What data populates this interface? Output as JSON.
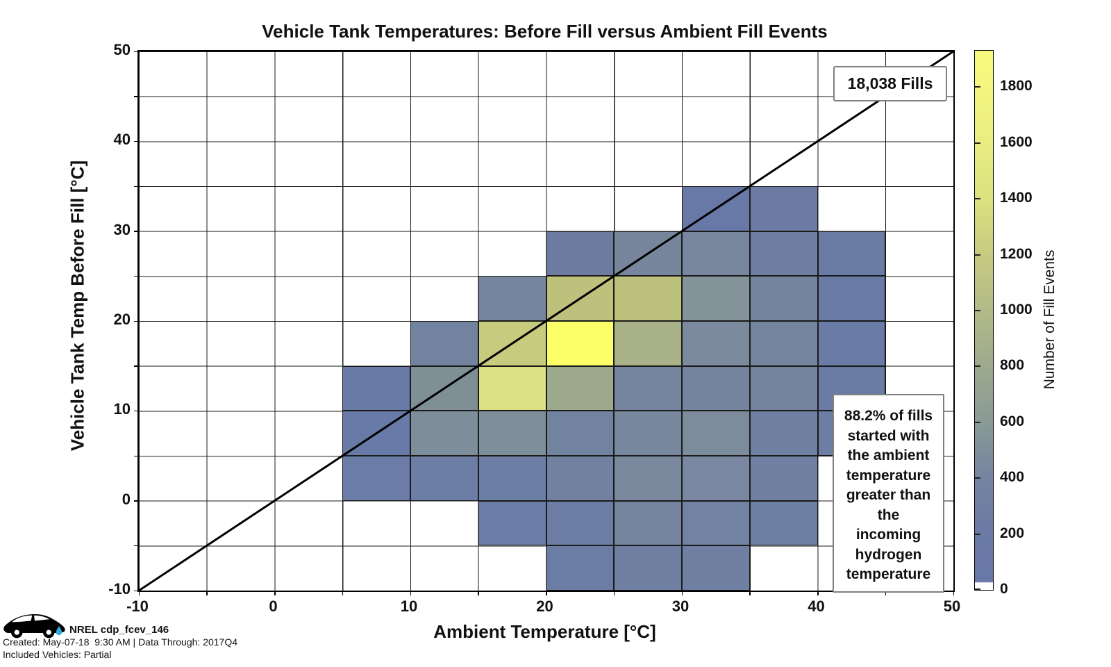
{
  "title": "Vehicle Tank Temperatures: Before Fill versus Ambient Fill Events",
  "annotations": {
    "fills_count_label": "18,038 Fills",
    "note_text": "88.2% of fills\nstarted with\nthe ambient\ntemperature\ngreater than\nthe\nincoming\nhydrogen\ntemperature"
  },
  "footer": {
    "logo": "nrel-car-with-hydrogen-droplet",
    "dataset_label": "NREL cdp_fcev_146",
    "created_line": "Created: May-07-18  9:30 AM | Data Through: 2017Q4",
    "included_line": "Included Vehicles: Partial",
    "droplet_color": "#29abe2"
  },
  "colors": {
    "grid_color": "#1a1a1a",
    "axis_color": "#000000",
    "reference_line_color": "#000000",
    "annotation_border_color": "#7f7f7f",
    "background": "#ffffff"
  },
  "chart_data": {
    "type": "heatmap",
    "title": "Vehicle Tank Temperatures: Before Fill versus Ambient Fill Events",
    "xlabel": "Ambient Temperature [°C]",
    "ylabel": "Vehicle Tank Temp Before Fill [°C]",
    "xlim": [
      -10,
      50
    ],
    "ylim": [
      -10,
      50
    ],
    "x_tick_labels": [
      -10,
      0,
      10,
      20,
      30,
      40,
      50
    ],
    "y_tick_labels": [
      -10,
      0,
      10,
      20,
      30,
      40,
      50
    ],
    "grid_step": 5,
    "bin_size": 5,
    "grid_on": true,
    "total_fills": 18038,
    "pct_ambient_greater": 88.2,
    "reference_line": {
      "from": [
        -10,
        -10
      ],
      "to": [
        50,
        50
      ],
      "desc": "y = x identity line"
    },
    "colorbar": {
      "label": "Number of Fill Events",
      "ticks": [
        0,
        200,
        400,
        600,
        800,
        1000,
        1200,
        1400,
        1600,
        1800
      ],
      "min_value": 0,
      "max_value": 1930,
      "position": "right",
      "gradient_stops": [
        [
          0.0,
          "#ffffff"
        ],
        [
          0.013,
          "#ffffff"
        ],
        [
          0.015,
          "#6877a9"
        ],
        [
          0.104,
          "#6b7aa5"
        ],
        [
          0.207,
          "#7584a0"
        ],
        [
          0.311,
          "#8a9a96"
        ],
        [
          0.415,
          "#9daa8e"
        ],
        [
          0.518,
          "#b2ba88"
        ],
        [
          0.622,
          "#c6cb81"
        ],
        [
          0.725,
          "#dce07f"
        ],
        [
          0.829,
          "#e9ed82"
        ],
        [
          0.933,
          "#f3f57f"
        ],
        [
          1.0,
          "#f8fa7c"
        ]
      ]
    },
    "cells": [
      {
        "x": 30,
        "y": 30,
        "color": "#6878a7",
        "count_est": 110
      },
      {
        "x": 35,
        "y": 30,
        "color": "#6b7ba4",
        "count_est": 190
      },
      {
        "x": 20,
        "y": 25,
        "color": "#6c7ca1",
        "count_est": 250
      },
      {
        "x": 25,
        "y": 25,
        "color": "#77869c",
        "count_est": 400
      },
      {
        "x": 30,
        "y": 25,
        "color": "#78879e",
        "count_est": 410
      },
      {
        "x": 35,
        "y": 25,
        "color": "#6e7ea3",
        "count_est": 260
      },
      {
        "x": 40,
        "y": 25,
        "color": "#6b7ca4",
        "count_est": 210
      },
      {
        "x": 15,
        "y": 20,
        "color": "#76869e",
        "count_est": 380
      },
      {
        "x": 20,
        "y": 20,
        "color": "#bdc17b",
        "count_est": 1110
      },
      {
        "x": 25,
        "y": 20,
        "color": "#bcc17c",
        "count_est": 1100
      },
      {
        "x": 30,
        "y": 20,
        "color": "#84939a",
        "count_est": 540
      },
      {
        "x": 35,
        "y": 20,
        "color": "#75849e",
        "count_est": 360
      },
      {
        "x": 40,
        "y": 20,
        "color": "#6a7ba5",
        "count_est": 180
      },
      {
        "x": 10,
        "y": 15,
        "color": "#7283a0",
        "count_est": 320
      },
      {
        "x": 15,
        "y": 15,
        "color": "#c6cb7d",
        "count_est": 1220
      },
      {
        "x": 20,
        "y": 15,
        "color": "#fdff69",
        "count_est": 1930
      },
      {
        "x": 25,
        "y": 15,
        "color": "#a9b188",
        "count_est": 890
      },
      {
        "x": 30,
        "y": 15,
        "color": "#7b8b9d",
        "count_est": 440
      },
      {
        "x": 35,
        "y": 15,
        "color": "#75859f",
        "count_est": 360
      },
      {
        "x": 40,
        "y": 15,
        "color": "#6a7ba5",
        "count_est": 180
      },
      {
        "x": 5,
        "y": 10,
        "color": "#687aa6",
        "count_est": 120
      },
      {
        "x": 10,
        "y": 10,
        "color": "#7f8f96",
        "count_est": 500
      },
      {
        "x": 15,
        "y": 10,
        "color": "#dce085",
        "count_est": 1430
      },
      {
        "x": 20,
        "y": 10,
        "color": "#9da98c",
        "count_est": 790
      },
      {
        "x": 25,
        "y": 10,
        "color": "#75859f",
        "count_est": 360
      },
      {
        "x": 30,
        "y": 10,
        "color": "#74849f",
        "count_est": 350
      },
      {
        "x": 35,
        "y": 10,
        "color": "#74849f",
        "count_est": 350
      },
      {
        "x": 40,
        "y": 10,
        "color": "#6b7ca4",
        "count_est": 210
      },
      {
        "x": 5,
        "y": 5,
        "color": "#687aa8",
        "count_est": 120
      },
      {
        "x": 10,
        "y": 5,
        "color": "#7d8d9a",
        "count_est": 470
      },
      {
        "x": 15,
        "y": 5,
        "color": "#7f8f99",
        "count_est": 490
      },
      {
        "x": 20,
        "y": 5,
        "color": "#7283a0",
        "count_est": 320
      },
      {
        "x": 25,
        "y": 5,
        "color": "#76879e",
        "count_est": 380
      },
      {
        "x": 30,
        "y": 5,
        "color": "#7d8c9b",
        "count_est": 460
      },
      {
        "x": 35,
        "y": 5,
        "color": "#6f80a2",
        "count_est": 280
      },
      {
        "x": 40,
        "y": 5,
        "color": "#6d7ea4",
        "count_est": 240
      },
      {
        "x": 5,
        "y": 0,
        "color": "#6b7da7",
        "count_est": 200
      },
      {
        "x": 10,
        "y": 0,
        "color": "#6c7ea6",
        "count_est": 210
      },
      {
        "x": 15,
        "y": 0,
        "color": "#6d7ea5",
        "count_est": 240
      },
      {
        "x": 20,
        "y": 0,
        "color": "#7082a0",
        "count_est": 300
      },
      {
        "x": 25,
        "y": 0,
        "color": "#7a899e",
        "count_est": 430
      },
      {
        "x": 30,
        "y": 0,
        "color": "#7988a0",
        "count_est": 420
      },
      {
        "x": 35,
        "y": 0,
        "color": "#6f80a2",
        "count_est": 280
      },
      {
        "x": 15,
        "y": -5,
        "color": "#6b7ca6",
        "count_est": 200
      },
      {
        "x": 20,
        "y": -5,
        "color": "#6d7ea5",
        "count_est": 240
      },
      {
        "x": 25,
        "y": -5,
        "color": "#7585a0",
        "count_est": 360
      },
      {
        "x": 30,
        "y": -5,
        "color": "#7182a2",
        "count_est": 300
      },
      {
        "x": 35,
        "y": -5,
        "color": "#6e7fa4",
        "count_est": 250
      },
      {
        "x": 20,
        "y": -10,
        "color": "#6c7da5",
        "count_est": 220
      },
      {
        "x": 25,
        "y": -10,
        "color": "#7080a3",
        "count_est": 290
      },
      {
        "x": 30,
        "y": -10,
        "color": "#6f80a3",
        "count_est": 280
      }
    ]
  }
}
